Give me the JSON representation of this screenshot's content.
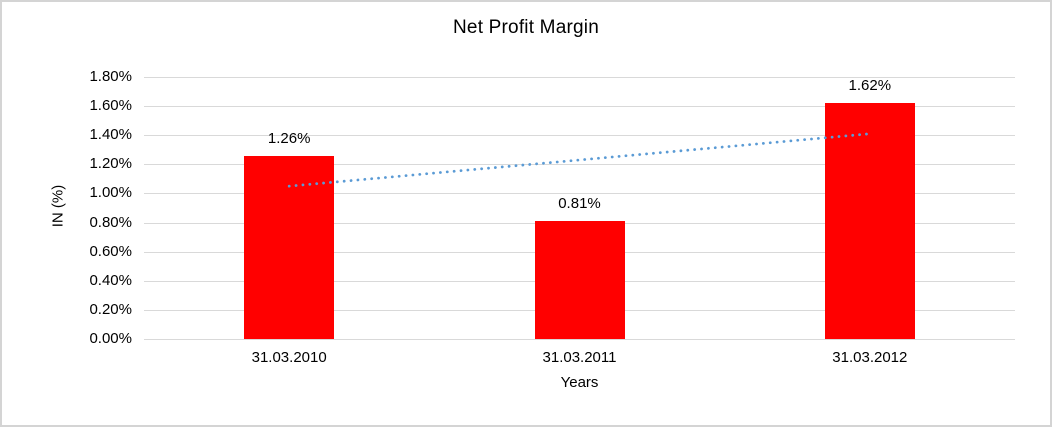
{
  "chart_data": {
    "type": "bar",
    "title": "Net Profit Margin",
    "xlabel": "Years",
    "ylabel": "IN (%)",
    "categories": [
      "31.03.2010",
      "31.03.2011",
      "31.03.2012"
    ],
    "values": [
      1.26,
      0.81,
      1.62
    ],
    "data_labels": [
      "1.26%",
      "0.81%",
      "1.62%"
    ],
    "bar_color": "#ff0000",
    "ylim": [
      0,
      1.8
    ],
    "yticks": [
      {
        "label": "0.00%",
        "value": 0.0
      },
      {
        "label": "0.20%",
        "value": 0.2
      },
      {
        "label": "0.40%",
        "value": 0.4
      },
      {
        "label": "0.60%",
        "value": 0.6
      },
      {
        "label": "0.80%",
        "value": 0.8
      },
      {
        "label": "1.00%",
        "value": 1.0
      },
      {
        "label": "1.20%",
        "value": 1.2
      },
      {
        "label": "1.40%",
        "value": 1.4
      },
      {
        "label": "1.60%",
        "value": 1.6
      },
      {
        "label": "1.80%",
        "value": 1.8
      }
    ],
    "grid": true,
    "legend": false,
    "gridline_color": "#d9d9d9",
    "trendline": {
      "type": "linear",
      "style": "dotted",
      "color": "#5b9bd5",
      "points": [
        {
          "category": "31.03.2010",
          "value": 1.05
        },
        {
          "category": "31.03.2012",
          "value": 1.41
        }
      ]
    }
  }
}
